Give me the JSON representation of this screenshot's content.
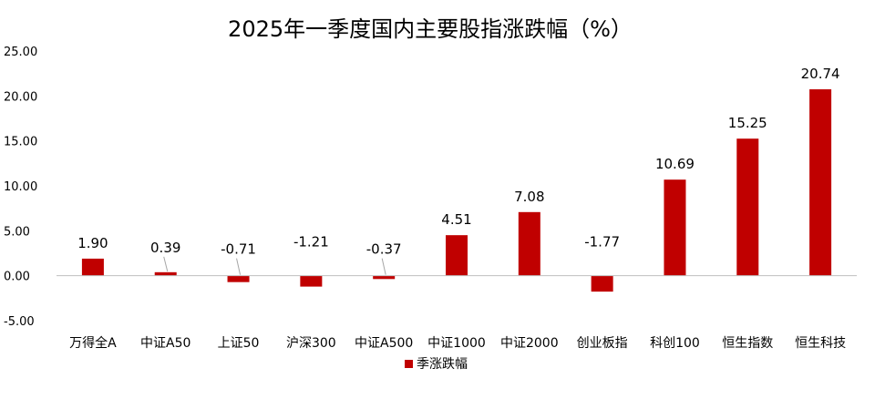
{
  "chart_data": {
    "type": "bar",
    "title": "2025年一季度国内主要股指涨跌幅（%）",
    "xlabel": "",
    "ylabel": "",
    "categories": [
      "万得全A",
      "中证A50",
      "上证50",
      "沪深300",
      "中证A500",
      "中证1000",
      "中证2000",
      "创业板指",
      "科创100",
      "恒生指数",
      "恒生科技"
    ],
    "series": [
      {
        "name": "季涨跌幅",
        "values": [
          1.9,
          0.39,
          -0.71,
          -1.21,
          -0.37,
          4.51,
          7.08,
          -1.77,
          10.69,
          15.25,
          20.74
        ],
        "labels": [
          "1.90",
          "0.39",
          "-0.71",
          "-1.21",
          "-0.37",
          "4.51",
          "7.08",
          "-1.77",
          "10.69",
          "15.25",
          "20.74"
        ]
      }
    ],
    "ylim": [
      -5,
      25
    ],
    "yticks": [
      -5,
      0,
      5,
      10,
      15,
      20,
      25
    ],
    "ytick_labels": [
      "-5.00",
      "0.00",
      "5.00",
      "10.00",
      "15.00",
      "20.00",
      "25.00"
    ],
    "grid": false,
    "legend_position": "bottom-center",
    "colors": {
      "bar": "#C00000",
      "axis": "#BFBFBF",
      "text": "#000000",
      "leader": "#A6A6A6"
    }
  }
}
